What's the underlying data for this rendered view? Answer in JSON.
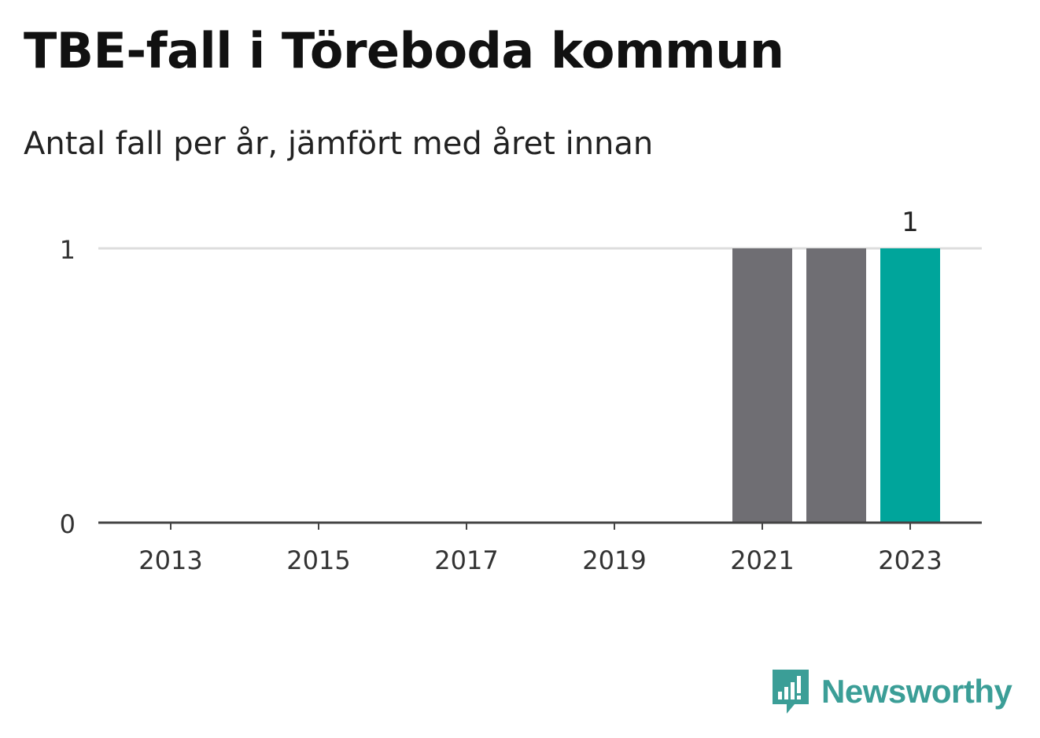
{
  "title": "TBE-fall i Töreboda kommun",
  "subtitle": "Antal fall per år, jämfört med året innan",
  "brand": "Newsworthy",
  "colors": {
    "bar": "#6f6e73",
    "highlight": "#00a59b",
    "grid": "#dddddd",
    "axis": "#444444",
    "brand": "#3b9e97"
  },
  "chart_data": {
    "type": "bar",
    "categories": [
      "2013",
      "2014",
      "2015",
      "2016",
      "2017",
      "2018",
      "2019",
      "2020",
      "2021",
      "2022",
      "2023"
    ],
    "values": [
      0,
      0,
      0,
      0,
      0,
      0,
      0,
      0,
      1,
      1,
      1
    ],
    "x_tick_labels": [
      "2013",
      "2015",
      "2017",
      "2019",
      "2021",
      "2023"
    ],
    "y_ticks": [
      0,
      1
    ],
    "ylim": [
      0,
      1
    ],
    "highlight_category": "2023",
    "data_labels": [
      {
        "category": "2023",
        "label": "1"
      }
    ],
    "grid": true,
    "xlabel": "",
    "ylabel": ""
  }
}
